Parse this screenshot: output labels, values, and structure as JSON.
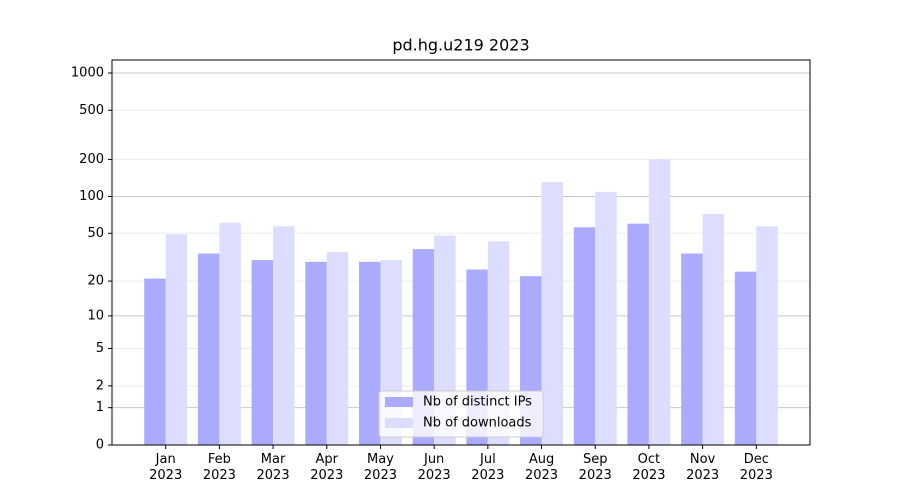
{
  "chart_data": {
    "type": "bar",
    "title": "pd.hg.u219 2023",
    "categories": [
      "Jan\n2023",
      "Feb\n2023",
      "Mar\n2023",
      "Apr\n2023",
      "May\n2023",
      "Jun\n2023",
      "Jul\n2023",
      "Aug\n2023",
      "Sep\n2023",
      "Oct\n2023",
      "Nov\n2023",
      "Dec\n2023"
    ],
    "series": [
      {
        "name": "Nb of distinct IPs",
        "color": "#aaaaff",
        "values": [
          21,
          34,
          30,
          29,
          29,
          37,
          25,
          22,
          56,
          60,
          34,
          24
        ]
      },
      {
        "name": "Nb of downloads",
        "color": "#ddddff",
        "values": [
          49,
          61,
          57,
          35,
          30,
          48,
          43,
          131,
          109,
          200,
          72,
          57
        ]
      }
    ],
    "yscale": "log1p",
    "ylim": [
      0,
      1273
    ],
    "yticks": [
      0,
      1,
      2,
      5,
      10,
      20,
      50,
      100,
      200,
      500,
      1000
    ],
    "grid": true,
    "legend": "lower center"
  }
}
